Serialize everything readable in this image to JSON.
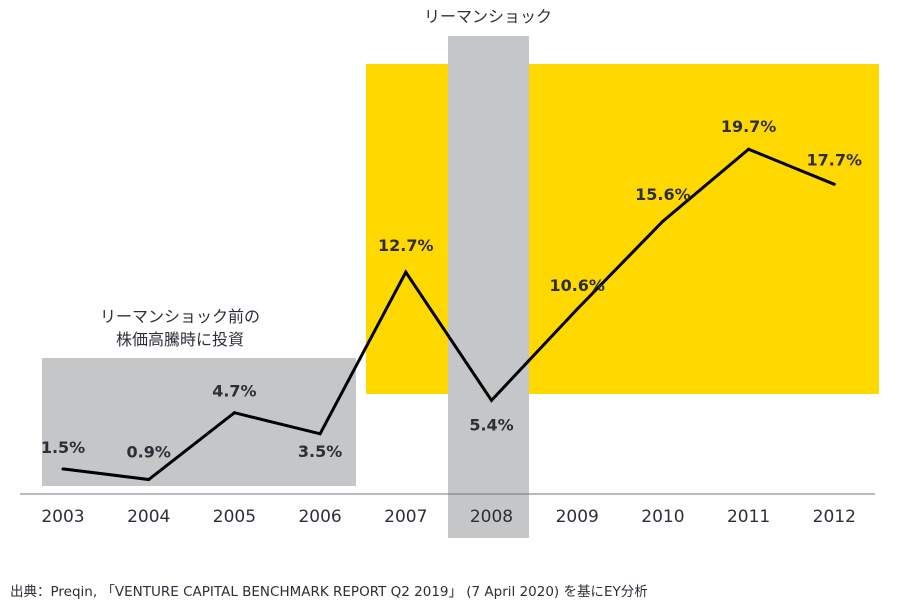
{
  "chart_data": {
    "type": "line",
    "title": "",
    "xlabel": "",
    "ylabel": "",
    "categories": [
      "2003",
      "2004",
      "2005",
      "2006",
      "2007",
      "2008",
      "2009",
      "2010",
      "2011",
      "2012"
    ],
    "values": [
      1.5,
      0.9,
      4.7,
      3.5,
      12.7,
      5.4,
      10.6,
      15.6,
      19.7,
      17.7
    ],
    "value_labels": [
      "1.5%",
      "0.9%",
      "4.7%",
      "3.5%",
      "12.7%",
      "5.4%",
      "10.6%",
      "15.6%",
      "19.7%",
      "17.7%"
    ],
    "ylim": [
      0,
      21
    ],
    "grid": false,
    "annotations": {
      "pre_crisis_line1": "リーマンショック前の",
      "pre_crisis_line2": "株価高騰時に投資",
      "crisis": "リーマンショック"
    },
    "colors": {
      "line": "#000000",
      "pre_crisis_band": "#c4c6c8",
      "crisis_band": "#c4c6c8",
      "highlight_band": "#ffd800",
      "axis": "#747480",
      "text": "#2e2e38"
    }
  },
  "source": "出典：Preqin, 「VENTURE CAPITAL BENCHMARK REPORT Q2 2019」 (7 April 2020) を基にEY分析"
}
